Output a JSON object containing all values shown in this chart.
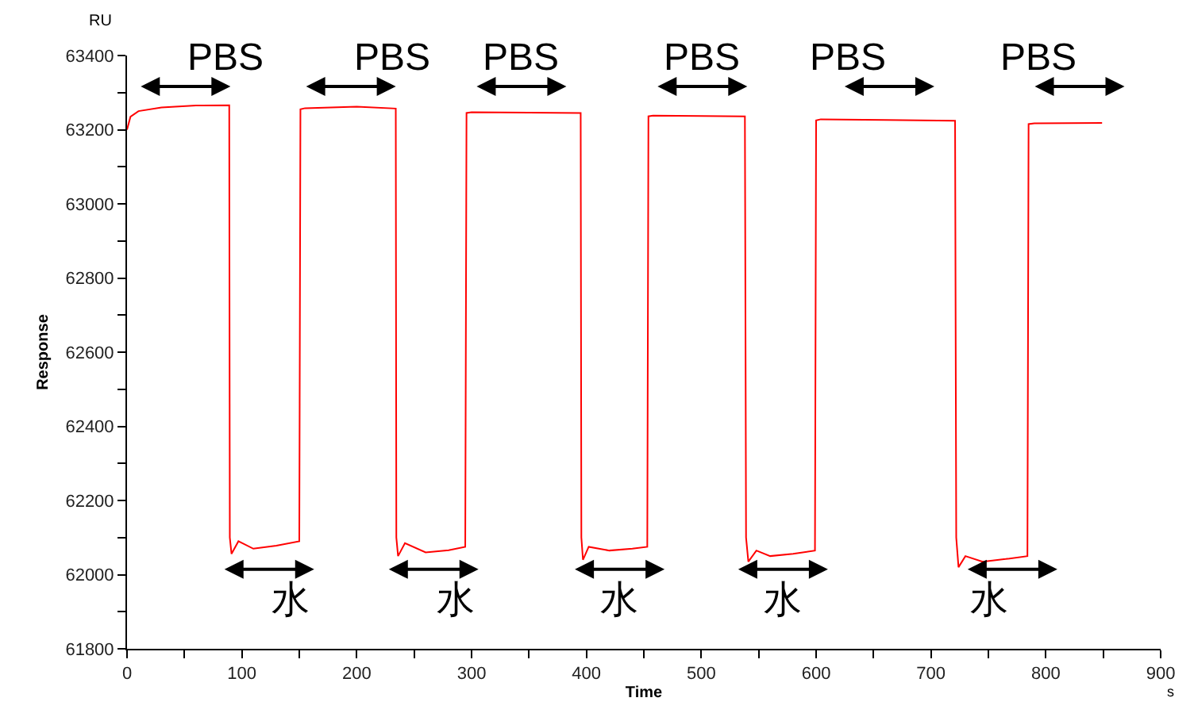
{
  "chart_data": {
    "type": "line",
    "xlabel": "Time",
    "ylabel": "Response",
    "x": [
      0,
      3,
      10,
      30,
      60,
      89,
      89.5,
      91,
      97,
      110,
      130,
      150,
      151,
      155,
      200,
      234,
      234.5,
      236,
      242,
      260,
      280,
      294.5,
      295.6,
      300,
      350,
      395,
      395.6,
      397,
      402,
      420,
      440,
      453,
      454,
      458,
      500,
      538,
      539,
      541,
      548,
      560,
      580,
      599,
      600,
      604,
      660,
      721,
      722,
      724,
      730,
      745,
      765,
      784,
      785,
      790,
      849
    ],
    "series": [
      {
        "color": "#ff0000",
        "values": [
          63200,
          63235,
          63250,
          63260,
          63265,
          63266,
          62100,
          62056,
          62090,
          62070,
          62078,
          62090,
          63255,
          63258,
          63262,
          63257,
          62100,
          62050,
          62085,
          62060,
          62066,
          62075,
          63245,
          63247,
          63246,
          63245,
          62100,
          62040,
          62075,
          62065,
          62070,
          62075,
          63236,
          63238,
          63237,
          63236,
          62100,
          62035,
          62065,
          62050,
          62056,
          62065,
          63225,
          63228,
          63226,
          63224,
          62100,
          62020,
          62050,
          62035,
          62042,
          62050,
          63215,
          63217,
          63218
        ]
      }
    ],
    "xlim": [
      0,
      900
    ],
    "ylim": [
      61800,
      63400
    ],
    "xticks": [
      0,
      {
        "value": 50,
        "label": null
      },
      100,
      {
        "value": 150,
        "label": null
      },
      200,
      {
        "value": 250,
        "label": null
      },
      300,
      {
        "value": 350,
        "label": null
      },
      400,
      {
        "value": 450,
        "label": null
      },
      500,
      {
        "value": 550,
        "label": null
      },
      600,
      {
        "value": 650,
        "label": null
      },
      700,
      {
        "value": 750,
        "label": null
      },
      800,
      {
        "value": 850,
        "label": null
      },
      900
    ],
    "yticks": [
      61800,
      {
        "value": 61900,
        "label": null
      },
      62000,
      {
        "value": 62100,
        "label": null
      },
      62200,
      {
        "value": 62300,
        "label": null
      },
      62400,
      {
        "value": 62500,
        "label": null
      },
      62600,
      {
        "value": 62700,
        "label": null
      },
      62800,
      {
        "value": 62900,
        "label": null
      },
      63000,
      {
        "value": 63100,
        "label": null
      },
      63200,
      {
        "value": 63300,
        "label": null
      },
      63400
    ],
    "marker": "none",
    "line_style": "solid",
    "annotations": [
      "RU",
      "s",
      "PBS",
      "PBS",
      "PBS",
      "PBS",
      "PBS",
      "PBS",
      "水",
      "水",
      "水",
      "水",
      "水"
    ]
  }
}
